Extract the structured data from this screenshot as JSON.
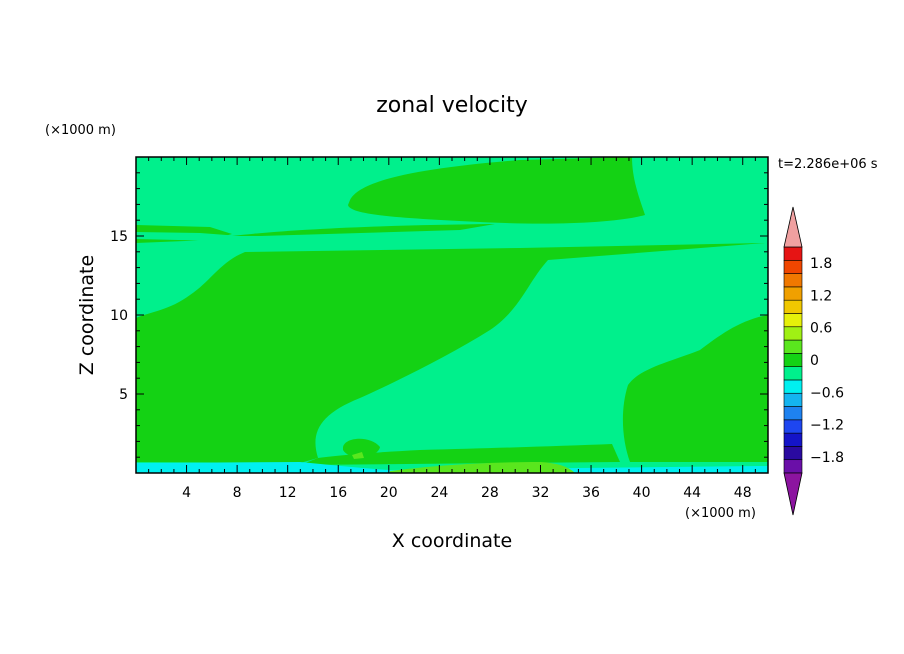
{
  "chart_data": {
    "type": "contour",
    "title": "zonal velocity",
    "xlabel": "X coordinate",
    "ylabel": "Z coordinate",
    "x_unit": "(×1000 m)",
    "y_unit": "(×1000 m)",
    "time_label": "t=2.286e+06 s",
    "xlim": [
      0,
      50
    ],
    "ylim": [
      0,
      20
    ],
    "x_ticks": [
      4,
      8,
      12,
      16,
      20,
      24,
      28,
      32,
      36,
      40,
      44,
      48
    ],
    "y_ticks": [
      5,
      10,
      15
    ],
    "colorbar": {
      "min": -2.1,
      "max": 2.1,
      "step": 0.3,
      "tick_values": [
        1.8,
        1.2,
        0.6,
        0,
        -0.6,
        -1.2,
        -1.8
      ],
      "tick_labels": [
        "1.8",
        "1.2",
        "0.6",
        "0",
        "−0.6",
        "−1.2",
        "−1.8"
      ],
      "colors": [
        "#6a0fa8",
        "#2a0aa0",
        "#1414c8",
        "#1e46f0",
        "#1e82f0",
        "#14b4f0",
        "#00f0f0",
        "#00f08c",
        "#14d214",
        "#5ae61e",
        "#a0f014",
        "#e6f00a",
        "#f0c800",
        "#f0a000",
        "#f07800",
        "#f04600",
        "#e61414"
      ],
      "under_color": "#8c14a0",
      "over_color": "#f0a0a0"
    },
    "regions": [
      {
        "level": "-0.3 to 0",
        "color": "#00f08c"
      },
      {
        "level": "0 to 0.3",
        "color": "#14d214"
      },
      {
        "level": "0.3 to 0.6",
        "color": "#5ae61e"
      },
      {
        "level": "-0.6 to -0.3",
        "color": "#00f0f0"
      }
    ]
  }
}
